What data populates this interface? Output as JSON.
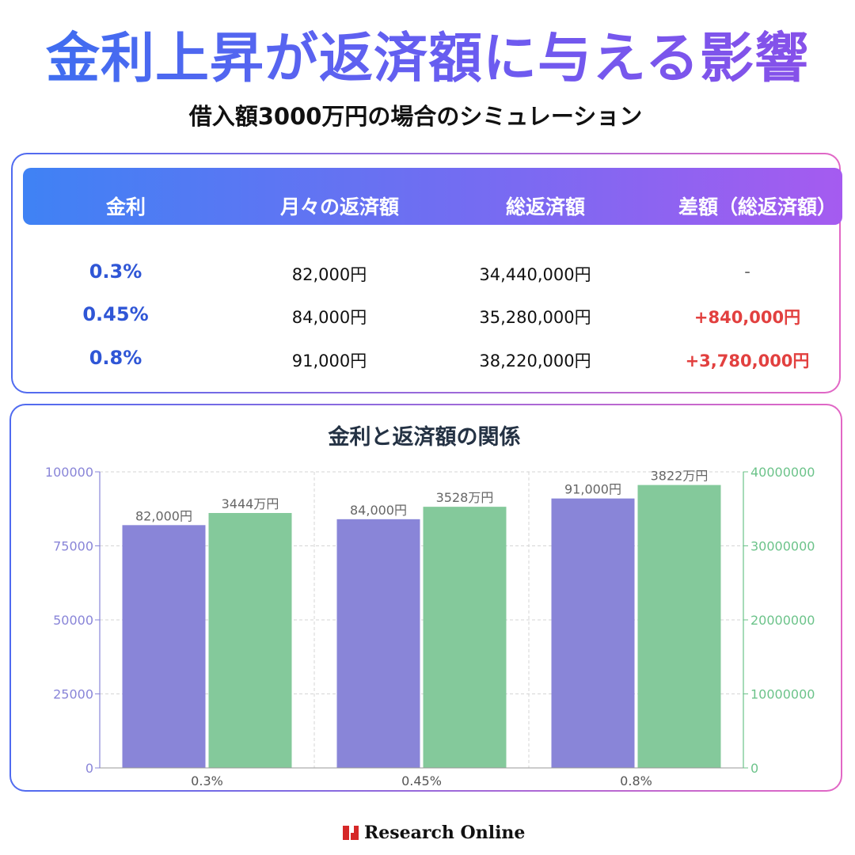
{
  "title": "金利上昇が返済額に与える影響",
  "subtitle": "借入額3000万円の場合のシミュレーション",
  "table": {
    "headers": [
      "金利",
      "月々の返済額",
      "総返済額",
      "差額（総返済額）"
    ],
    "rows": [
      {
        "rate": "0.3%",
        "monthly": "82,000円",
        "total": "34,440,000円",
        "diff": "-"
      },
      {
        "rate": "0.45%",
        "monthly": "84,000円",
        "total": "35,280,000円",
        "diff": "+840,000円"
      },
      {
        "rate": "0.8%",
        "monthly": "91,000円",
        "total": "38,220,000円",
        "diff": "+3,780,000円"
      }
    ]
  },
  "chart_data": {
    "type": "bar",
    "title": "金利と返済額の関係",
    "categories": [
      "0.3%",
      "0.45%",
      "0.8%"
    ],
    "series": [
      {
        "values": [
          82000,
          84000,
          91000
        ],
        "labels": [
          "82,000円",
          "84,000円",
          "91,000円"
        ],
        "color": "#8985d8",
        "axis": "left"
      },
      {
        "values": [
          34440000,
          35280000,
          38220000
        ],
        "labels": [
          "3444万円",
          "3528万円",
          "3822万円"
        ],
        "color": "#84c99b",
        "axis": "right"
      }
    ],
    "y_left": {
      "min": 0,
      "max": 100000,
      "ticks": [
        "0",
        "25000",
        "50000",
        "75000",
        "100000"
      ],
      "color": "#8985d8"
    },
    "y_right": {
      "min": 0,
      "max": 40000000,
      "ticks": [
        "0",
        "10000000",
        "20000000",
        "30000000",
        "40000000"
      ],
      "color": "#6cc38a"
    },
    "grid": true
  },
  "footer": {
    "brand": "Research Online",
    "logo_color": "#d62828"
  }
}
